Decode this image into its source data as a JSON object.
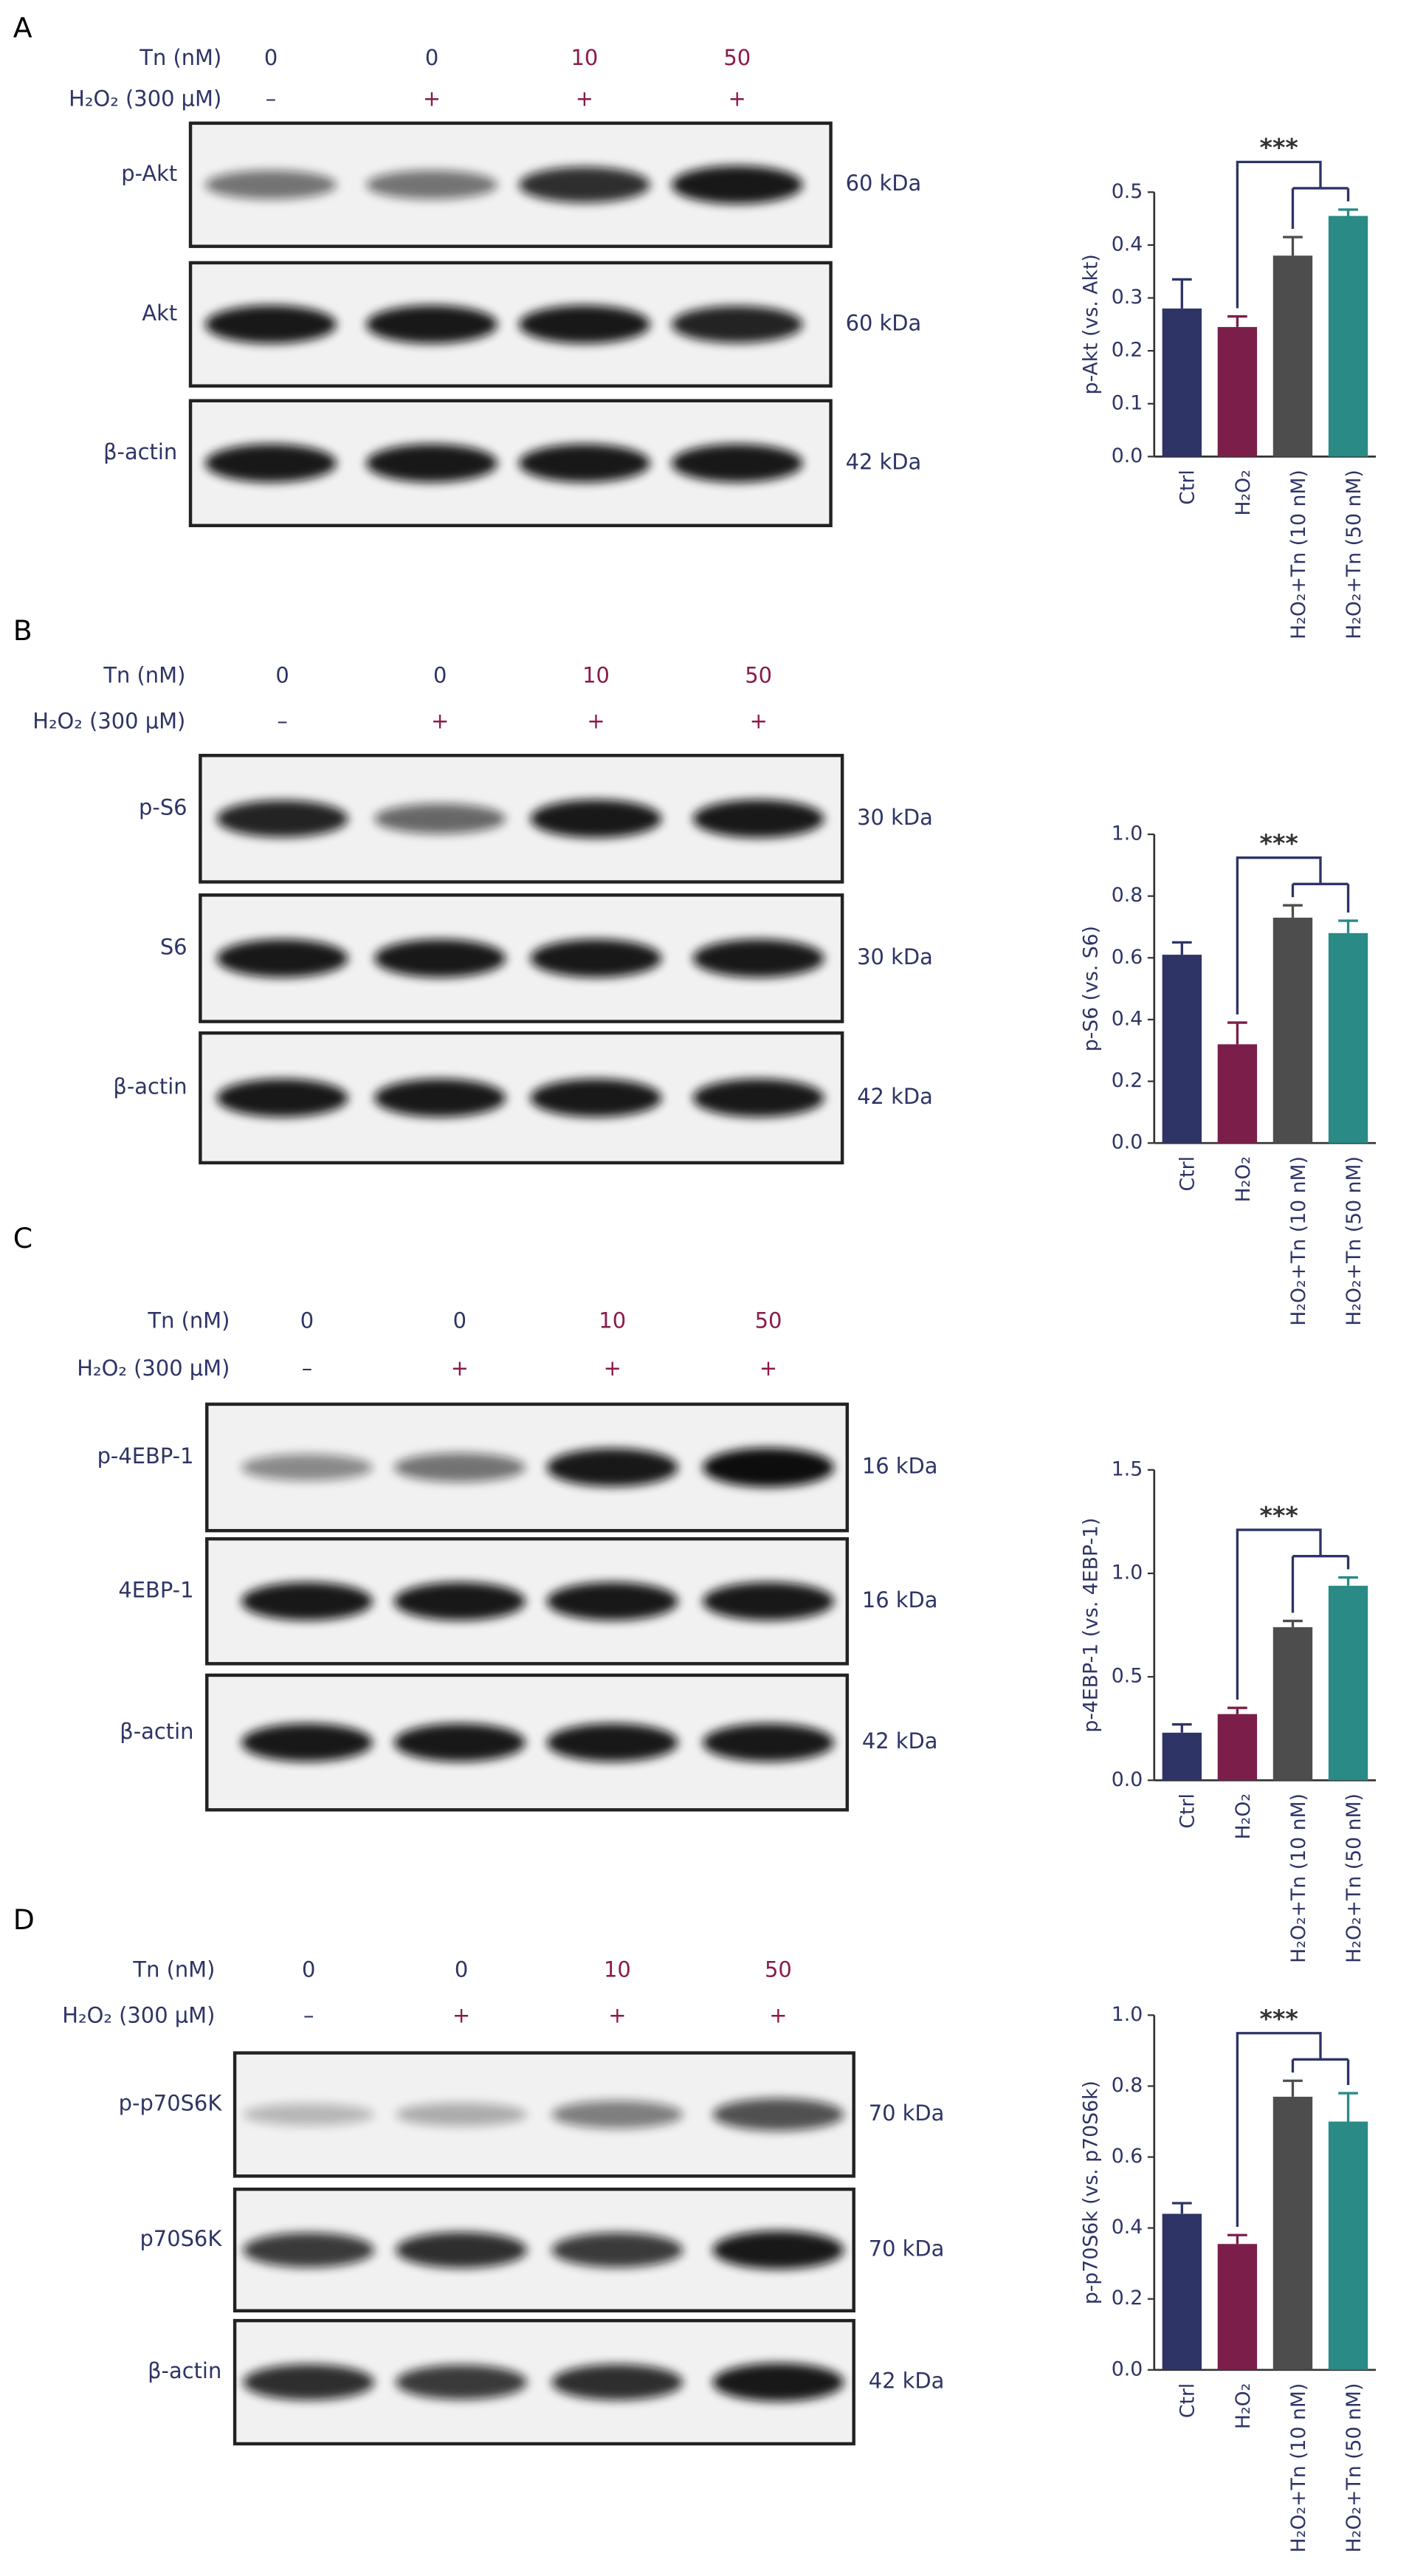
{
  "chart_data": [
    {
      "type": "bar",
      "ylabel": "p-Akt (vs. Akt)",
      "categories": [
        "Ctrl",
        "H₂O₂",
        "H₂O₂+Tn (10 nM)",
        "H₂O₂+Tn (50 nM)"
      ],
      "values": [
        0.28,
        0.245,
        0.38,
        0.455
      ],
      "errors": [
        0.055,
        0.02,
        0.035,
        0.012
      ],
      "colors": [
        "#2e3466",
        "#7b1f4a",
        "#4d4d4d",
        "#2a8a85"
      ],
      "ylim": [
        0,
        0.5
      ],
      "yticks": [
        {
          "value": 0,
          "label": "0.0"
        },
        0.1,
        0.2,
        0.3,
        0.4,
        0.5
      ],
      "annotation": "***"
    },
    {
      "type": "bar",
      "ylabel": "p-S6 (vs. S6)",
      "categories": [
        "Ctrl",
        "H₂O₂",
        "H₂O₂+Tn (10 nM)",
        "H₂O₂+Tn (50 nM)"
      ],
      "values": [
        0.61,
        0.32,
        0.73,
        0.68
      ],
      "errors": [
        0.04,
        0.07,
        0.04,
        0.04
      ],
      "colors": [
        "#2e3466",
        "#7b1f4a",
        "#4d4d4d",
        "#2a8a85"
      ],
      "ylim": [
        0,
        1
      ],
      "yticks": [
        {
          "value": 0,
          "label": "0.0"
        },
        0.2,
        0.4,
        0.6,
        0.8,
        {
          "value": 1,
          "label": "1.0"
        }
      ],
      "annotation": "***"
    },
    {
      "type": "bar",
      "ylabel": "p-4EBP-1 (vs. 4EBP-1)",
      "categories": [
        "Ctrl",
        "H₂O₂",
        "H₂O₂+Tn (10 nM)",
        "H₂O₂+Tn (50 nM)"
      ],
      "values": [
        0.23,
        0.32,
        0.74,
        0.94
      ],
      "errors": [
        0.04,
        0.03,
        0.03,
        0.04
      ],
      "colors": [
        "#2e3466",
        "#7b1f4a",
        "#4d4d4d",
        "#2a8a85"
      ],
      "ylim": [
        0,
        1.5
      ],
      "yticks": [
        {
          "value": 0,
          "label": "0.0"
        },
        0.5,
        {
          "value": 1,
          "label": "1.0"
        },
        1.5
      ],
      "annotation": "***"
    },
    {
      "type": "bar",
      "ylabel": "p-p70S6k (vs. p70S6k)",
      "categories": [
        "Ctrl",
        "H₂O₂",
        "H₂O₂+Tn (10 nM)",
        "H₂O₂+Tn (50 nM)"
      ],
      "values": [
        0.44,
        0.355,
        0.77,
        0.7
      ],
      "errors": [
        0.03,
        0.025,
        0.045,
        0.08
      ],
      "colors": [
        "#2e3466",
        "#7b1f4a",
        "#4d4d4d",
        "#2a8a85"
      ],
      "ylim": [
        0,
        1
      ],
      "yticks": [
        {
          "value": 0,
          "label": "0.0"
        },
        0.2,
        0.4,
        0.6,
        0.8,
        {
          "value": 1,
          "label": "1.0"
        }
      ],
      "annotation": "***"
    }
  ],
  "blots": [
    {
      "panel": "A",
      "rows": [
        {
          "label": "Tn (nM)",
          "values": [
            0,
            0,
            10,
            50
          ]
        },
        {
          "label": "H₂O₂ (300 μM)",
          "values": [
            "–",
            "+",
            "+",
            "+"
          ]
        }
      ],
      "bands": [
        {
          "label": "p-Akt",
          "size": "60 kDa"
        },
        {
          "label": "Akt",
          "size": "60 kDa"
        },
        {
          "label": "β-actin",
          "size": "42 kDa"
        }
      ]
    },
    {
      "panel": "B",
      "rows": [
        {
          "label": "Tn (nM)",
          "values": [
            0,
            0,
            10,
            50
          ]
        },
        {
          "label": "H₂O₂ (300 μM)",
          "values": [
            "–",
            "+",
            "+",
            "+"
          ]
        }
      ],
      "bands": [
        {
          "label": "p-S6",
          "size": "30 kDa"
        },
        {
          "label": "S6",
          "size": "30 kDa"
        },
        {
          "label": "β-actin",
          "size": "42 kDa"
        }
      ]
    },
    {
      "panel": "C",
      "rows": [
        {
          "label": "Tn (nM)",
          "values": [
            0,
            0,
            10,
            50
          ]
        },
        {
          "label": "H₂O₂ (300 μM)",
          "values": [
            "–",
            "+",
            "+",
            "+"
          ]
        }
      ],
      "bands": [
        {
          "label": "p-4EBP-1",
          "size": "16 kDa"
        },
        {
          "label": "4EBP-1",
          "size": "16 kDa"
        },
        {
          "label": "β-actin",
          "size": "42 kDa"
        }
      ]
    },
    {
      "panel": "D",
      "rows": [
        {
          "label": "Tn (nM)",
          "values": [
            0,
            0,
            10,
            50
          ]
        },
        {
          "label": "H₂O₂ (300 μM)",
          "values": [
            "–",
            "+",
            "+",
            "+"
          ]
        }
      ],
      "bands": [
        {
          "label": "p-p70S6K",
          "size": "70 kDa"
        },
        {
          "label": "p70S6K",
          "size": "70 kDa"
        },
        {
          "label": "β-actin",
          "size": "42 kDa"
        }
      ]
    }
  ]
}
